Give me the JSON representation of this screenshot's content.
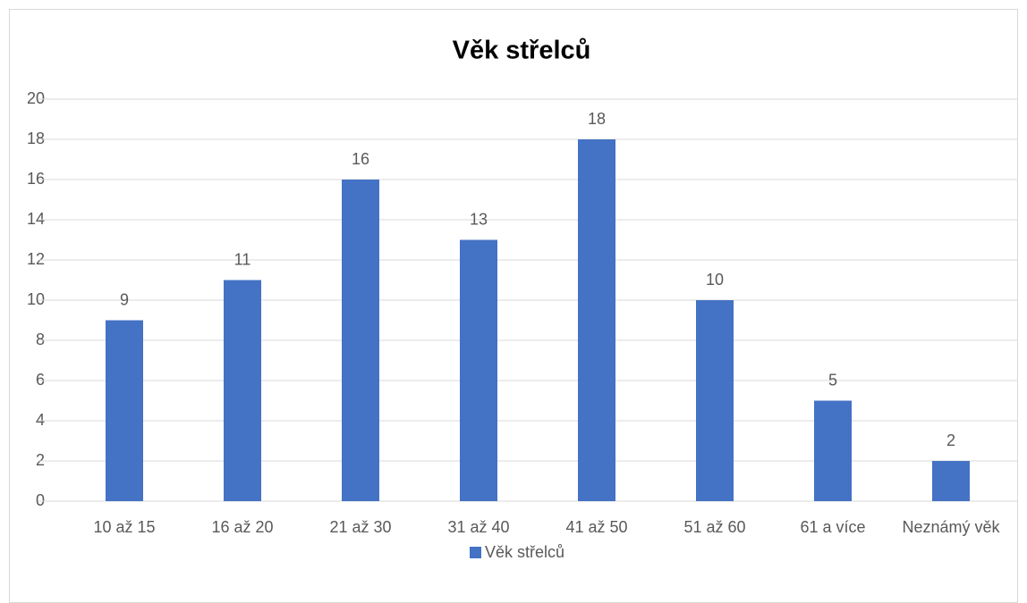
{
  "chart_data": {
    "type": "bar",
    "title": "Věk střelců",
    "categories": [
      "10 až 15",
      "16 až 20",
      "21 až 30",
      "31 až 40",
      "41 až 50",
      "51 až 60",
      "61 a více",
      "Neznámý věk"
    ],
    "series": [
      {
        "name": "Věk střelců",
        "color": "#4472c4",
        "values": [
          9,
          11,
          16,
          13,
          18,
          10,
          5,
          2
        ]
      }
    ],
    "ylim": [
      0,
      20
    ],
    "yticks": [
      0,
      2,
      4,
      6,
      8,
      10,
      12,
      14,
      16,
      18,
      20
    ],
    "grid": true,
    "legend": "bottom"
  }
}
